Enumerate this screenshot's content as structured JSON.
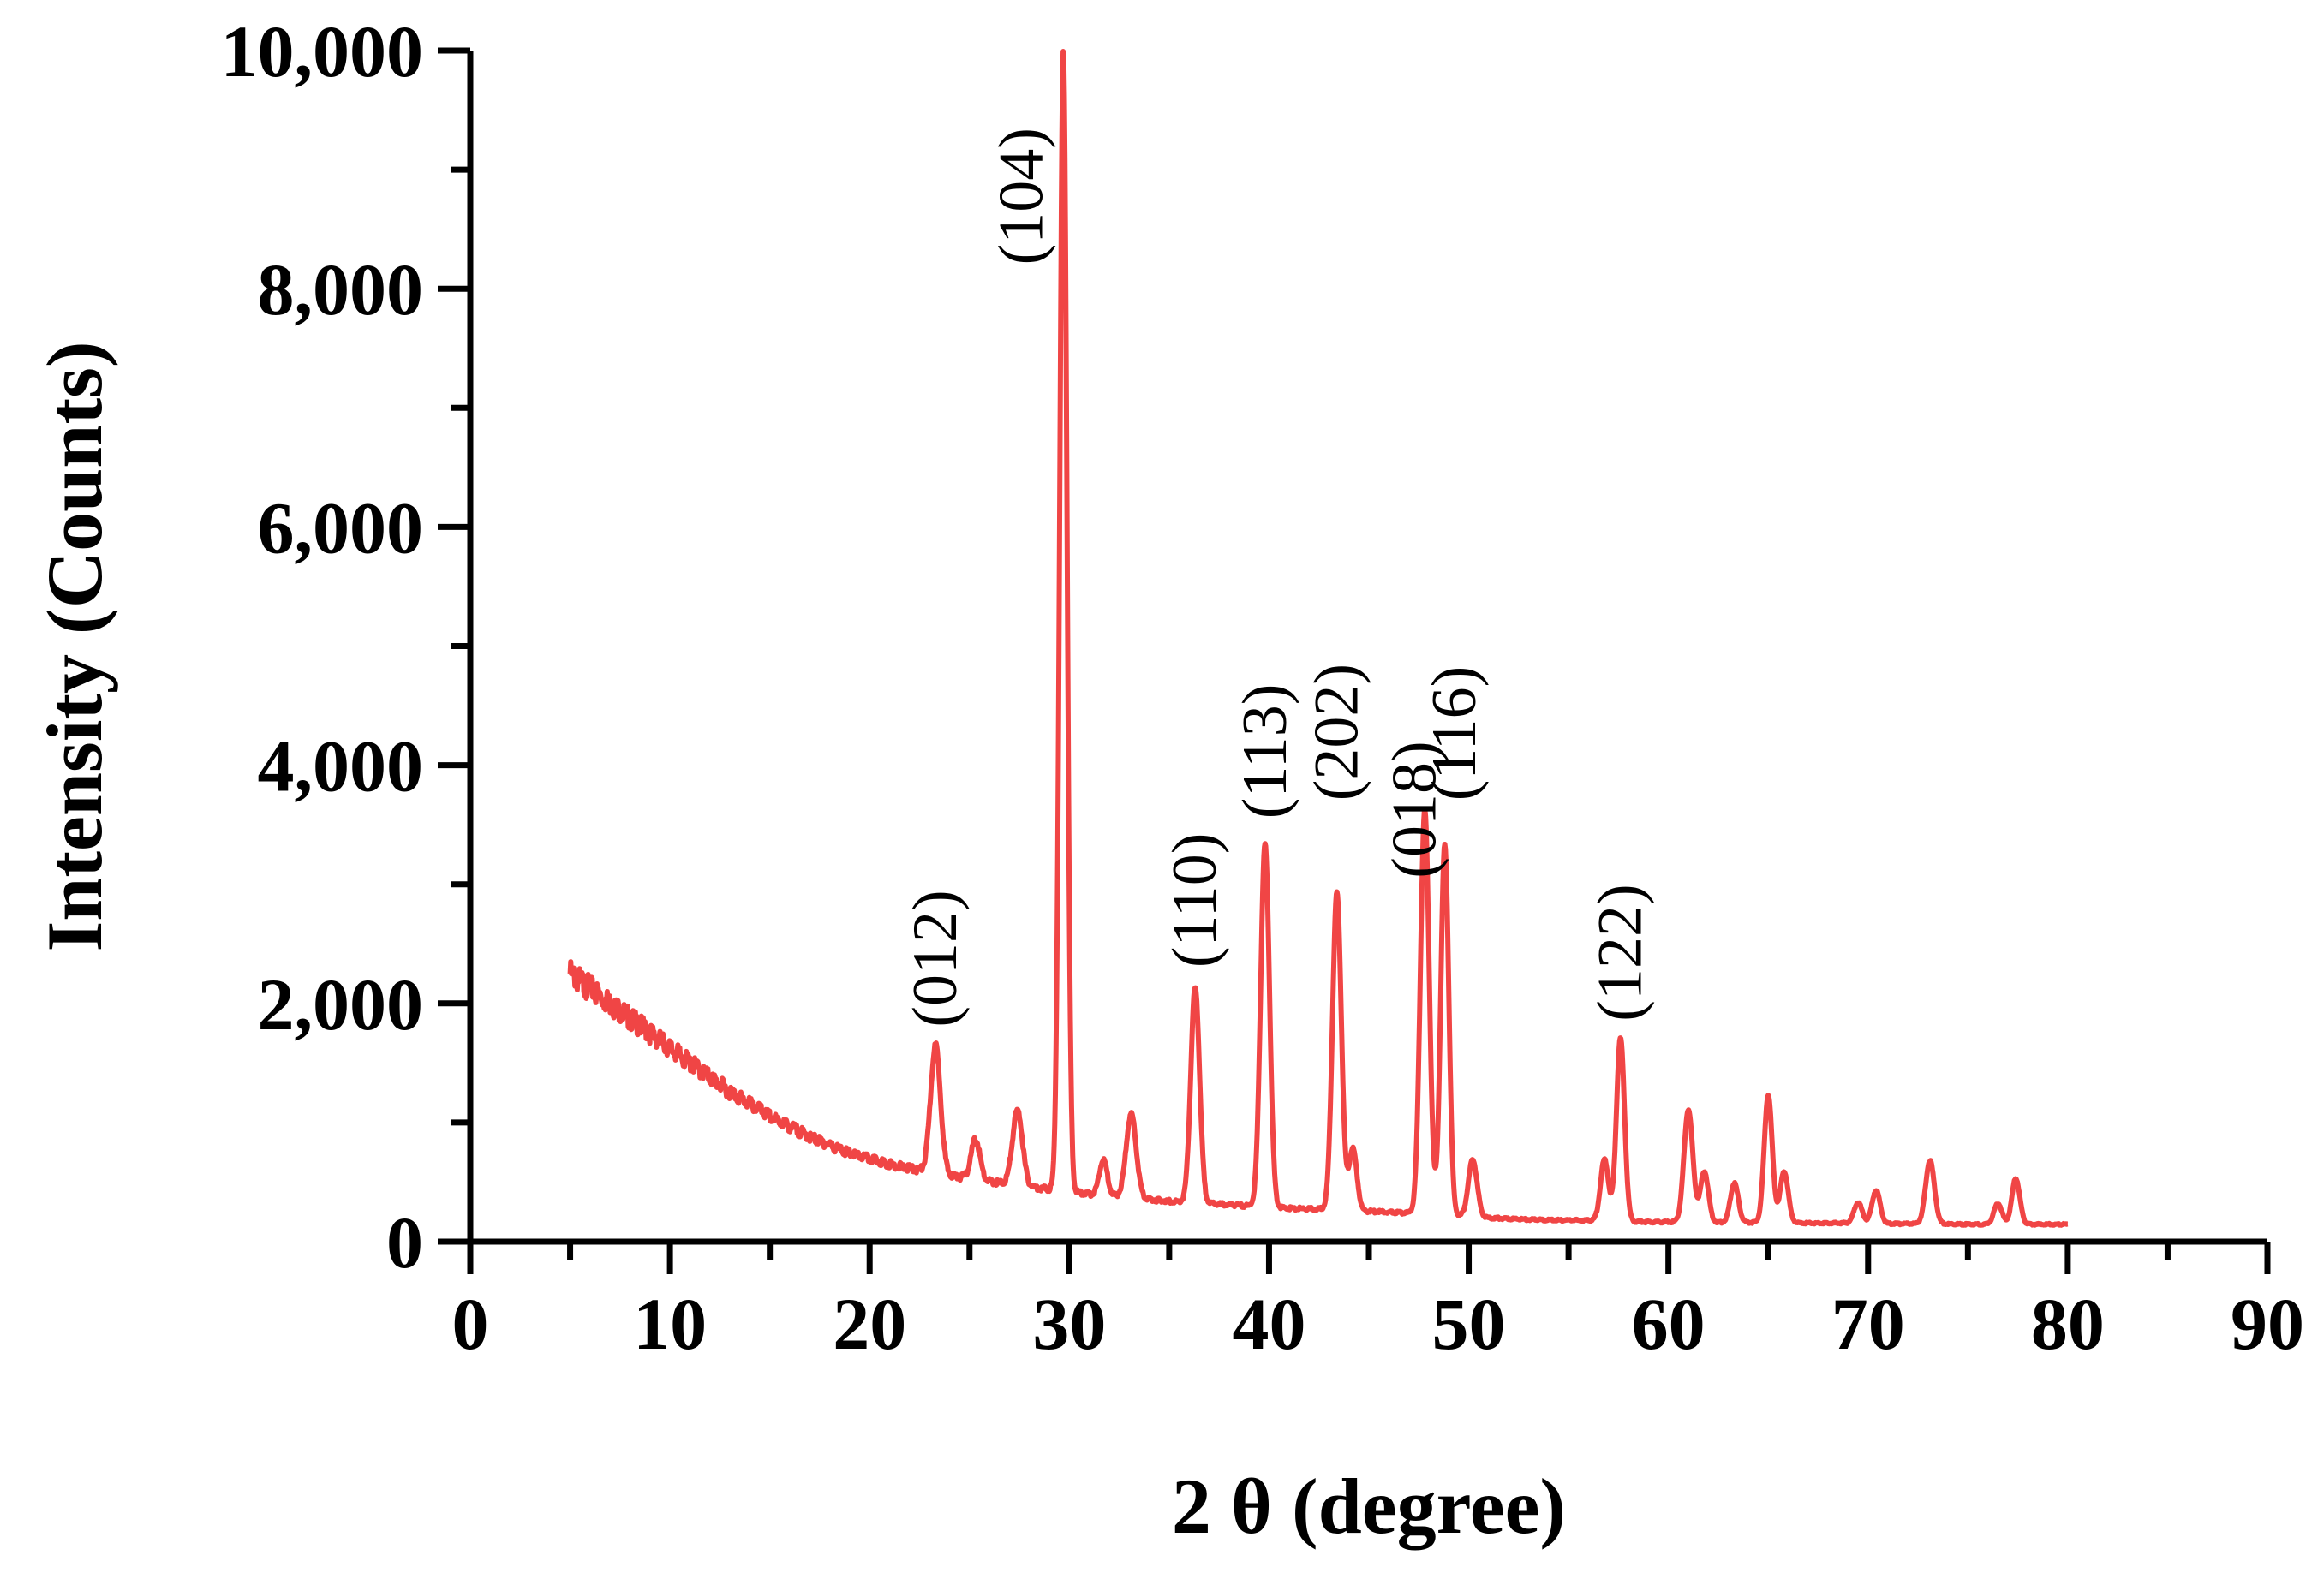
{
  "chart_data": {
    "type": "line",
    "title": "",
    "xlabel": "2 θ (degree)",
    "ylabel": "Intensity (Counts)",
    "xlim": [
      0,
      90
    ],
    "ylim": [
      0,
      10000
    ],
    "x_ticks": [
      0,
      10,
      20,
      30,
      40,
      50,
      60,
      70,
      80,
      90
    ],
    "x_tick_labels": [
      "0",
      "10",
      "20",
      "30",
      "40",
      "50",
      "60",
      "70",
      "80",
      "90"
    ],
    "y_ticks": [
      0,
      2000,
      4000,
      6000,
      8000,
      10000
    ],
    "y_tick_labels": [
      "0",
      "2,000",
      "4,000",
      "6,000",
      "8,000",
      "10,000"
    ],
    "grid": false,
    "legend": "none",
    "series_color": "#f04545",
    "series": [
      {
        "background": [
          [
            5,
            2250
          ],
          [
            7,
            2000
          ],
          [
            9,
            1750
          ],
          [
            11,
            1500
          ],
          [
            13,
            1260
          ],
          [
            15,
            1050
          ],
          [
            17,
            880
          ],
          [
            19,
            740
          ],
          [
            21,
            650
          ],
          [
            23,
            580
          ],
          [
            25,
            530
          ],
          [
            27,
            480
          ],
          [
            29,
            440
          ],
          [
            31,
            400
          ],
          [
            33,
            370
          ],
          [
            35,
            340
          ],
          [
            37,
            320
          ],
          [
            39,
            300
          ],
          [
            41,
            280
          ],
          [
            43,
            270
          ],
          [
            45,
            255
          ],
          [
            47,
            240
          ],
          [
            49,
            220
          ],
          [
            51,
            200
          ],
          [
            53,
            185
          ],
          [
            55,
            180
          ],
          [
            57,
            175
          ],
          [
            59,
            165
          ],
          [
            61,
            165
          ],
          [
            63,
            160
          ],
          [
            65,
            160
          ],
          [
            67,
            155
          ],
          [
            69,
            155
          ],
          [
            71,
            150
          ],
          [
            73,
            150
          ],
          [
            75,
            145
          ],
          [
            77,
            145
          ],
          [
            80,
            145
          ]
        ],
        "peaks": [
          {
            "x": 23.3,
            "y": 1650,
            "w": 0.25
          },
          {
            "x": 25.3,
            "y": 860,
            "w": 0.22
          },
          {
            "x": 27.4,
            "y": 1100,
            "w": 0.25
          },
          {
            "x": 29.7,
            "y": 10000,
            "w": 0.18
          },
          {
            "x": 31.7,
            "y": 690,
            "w": 0.2
          },
          {
            "x": 33.1,
            "y": 1070,
            "w": 0.25
          },
          {
            "x": 36.3,
            "y": 2130,
            "w": 0.22
          },
          {
            "x": 39.8,
            "y": 3340,
            "w": 0.22
          },
          {
            "x": 43.4,
            "y": 2930,
            "w": 0.22
          },
          {
            "x": 44.2,
            "y": 780,
            "w": 0.2
          },
          {
            "x": 47.8,
            "y": 3620,
            "w": 0.22
          },
          {
            "x": 48.8,
            "y": 3330,
            "w": 0.2
          },
          {
            "x": 50.2,
            "y": 690,
            "w": 0.22
          },
          {
            "x": 56.8,
            "y": 690,
            "w": 0.2
          },
          {
            "x": 57.6,
            "y": 1710,
            "w": 0.2
          },
          {
            "x": 61.0,
            "y": 1110,
            "w": 0.22
          },
          {
            "x": 61.8,
            "y": 590,
            "w": 0.2
          },
          {
            "x": 63.3,
            "y": 490,
            "w": 0.2
          },
          {
            "x": 65.0,
            "y": 1230,
            "w": 0.2
          },
          {
            "x": 65.8,
            "y": 590,
            "w": 0.2
          },
          {
            "x": 69.5,
            "y": 330,
            "w": 0.2
          },
          {
            "x": 70.4,
            "y": 430,
            "w": 0.2
          },
          {
            "x": 73.1,
            "y": 680,
            "w": 0.22
          },
          {
            "x": 76.5,
            "y": 320,
            "w": 0.2
          },
          {
            "x": 77.4,
            "y": 530,
            "w": 0.2
          }
        ]
      }
    ],
    "annotations": [
      {
        "text": "(012)",
        "x": 23.3,
        "y": 1800
      },
      {
        "text": "(104)",
        "x": 27.6,
        "y": 8200
      },
      {
        "text": "(110)",
        "x": 36.3,
        "y": 2300
      },
      {
        "text": "(113)",
        "x": 39.8,
        "y": 3550
      },
      {
        "text": "(202)",
        "x": 43.4,
        "y": 3700
      },
      {
        "text": "(018)",
        "x": 47.3,
        "y": 3050
      },
      {
        "text": "(116)",
        "x": 49.3,
        "y": 3700
      },
      {
        "text": "(122)",
        "x": 57.6,
        "y": 1850
      }
    ]
  }
}
